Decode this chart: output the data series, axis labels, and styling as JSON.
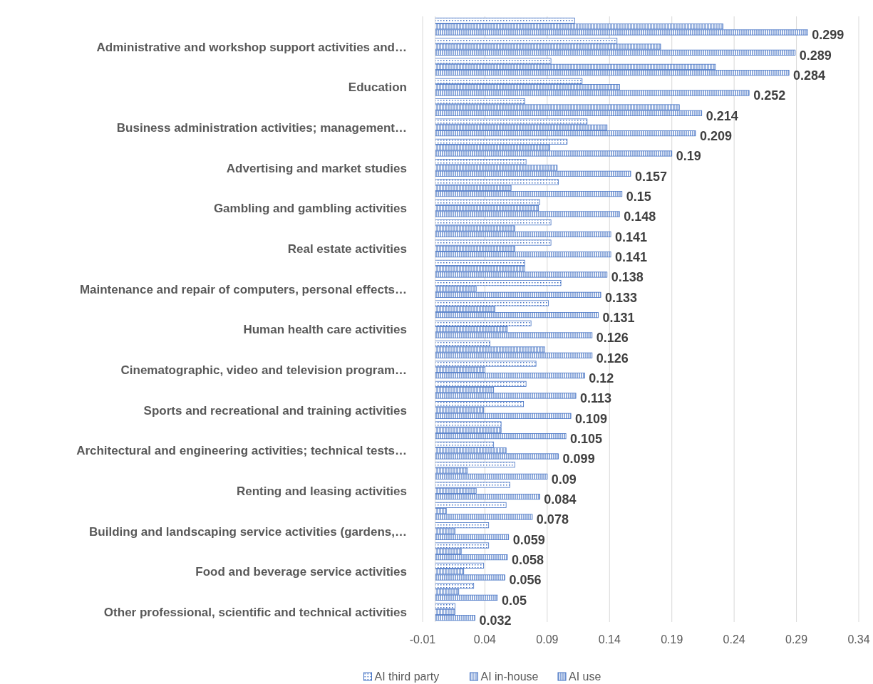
{
  "chart_data": {
    "type": "bar",
    "orientation": "horizontal",
    "categories": [
      null,
      "Administrative and workshop support activities and…",
      null,
      "Education",
      null,
      "Business administration activities; management…",
      null,
      "Advertising and market studies",
      null,
      "Gambling and gambling activities",
      null,
      "Real estate activities",
      null,
      "Maintenance and repair of computers, personal effects…",
      null,
      "Human health care activities",
      null,
      "Cinematographic, video and television program…",
      null,
      "Sports and recreational and training activities",
      null,
      "Architectural and engineering activities; technical tests…",
      null,
      "Renting and leasing activities",
      null,
      "Building and landscaping service activities (gardens,…",
      null,
      "Food and beverage service activities",
      null,
      "Other professional, scientific and technical activities"
    ],
    "series": [
      {
        "name": "AI third party",
        "color": "#4472c4",
        "values": [
          0.112,
          0.146,
          0.093,
          0.118,
          0.072,
          0.122,
          0.106,
          0.073,
          0.099,
          0.084,
          0.093,
          0.093,
          0.072,
          0.101,
          0.091,
          0.077,
          0.044,
          0.081,
          0.073,
          0.071,
          0.053,
          0.047,
          0.064,
          0.06,
          0.057,
          0.043,
          0.043,
          0.039,
          0.031,
          0.016
        ]
      },
      {
        "name": "AI in-house",
        "color": "#4472c4",
        "values": [
          0.231,
          0.181,
          0.225,
          0.148,
          0.196,
          0.138,
          0.092,
          0.098,
          0.061,
          0.083,
          0.064,
          0.064,
          0.072,
          0.033,
          0.048,
          0.058,
          0.088,
          0.04,
          0.047,
          0.039,
          0.053,
          0.057,
          0.026,
          0.033,
          0.009,
          0.016,
          0.021,
          0.023,
          0.019,
          0.016
        ]
      },
      {
        "name": "AI use",
        "color": "#4472c4",
        "values": [
          0.299,
          0.289,
          0.284,
          0.252,
          0.214,
          0.209,
          0.19,
          0.157,
          0.15,
          0.148,
          0.141,
          0.141,
          0.138,
          0.133,
          0.131,
          0.126,
          0.126,
          0.12,
          0.113,
          0.109,
          0.105,
          0.099,
          0.09,
          0.084,
          0.078,
          0.059,
          0.058,
          0.056,
          0.05,
          0.032
        ],
        "value_labels": [
          "0.299",
          "0.289",
          "0.284",
          "0.252",
          "0.214",
          "0.209",
          "0.19",
          "0.157",
          "0.15",
          "0.148",
          "0.141",
          "0.141",
          "0.138",
          "0.133",
          "0.131",
          "0.126",
          "0.126",
          "0.12",
          "0.113",
          "0.109",
          "0.105",
          "0.099",
          "0.09",
          "0.084",
          "0.078",
          "0.059",
          "0.058",
          "0.056",
          "0.05",
          "0.032"
        ]
      }
    ],
    "xlim": [
      -0.01,
      0.34
    ],
    "xticks": [
      -0.01,
      0.04,
      0.09,
      0.14,
      0.19,
      0.24,
      0.29,
      0.34
    ],
    "grid": "x",
    "legend": "bottom"
  }
}
